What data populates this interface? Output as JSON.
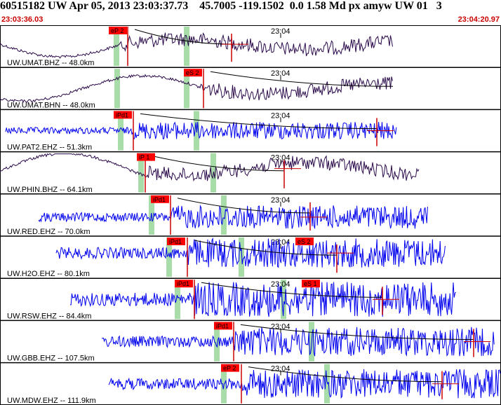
{
  "header": {
    "title": "60515182 UW Apr 05, 2013 23:03:37.73    45.7005 -119.1502  0.0 1.58 Md px amyw UW 01   3",
    "start_time": "23:03:36.03",
    "end_time": "23:04:20.97"
  },
  "tick_label": "23:04",
  "colors": {
    "broadband": "#2a0a4a",
    "short_period": "#0000ee",
    "pick_box": "#ff0000",
    "marker": "#a8dca8",
    "coda": "#000000",
    "border": "#000000"
  },
  "traces": [
    {
      "label": "UW.UMAT.BHZ -- 48.0km",
      "pick": "eP 2",
      "type": "broad",
      "picks_count": 1
    },
    {
      "label": "UW.UMAT.BHN -- 48.0km",
      "pick": "eS 2",
      "type": "broad",
      "picks_count": 1
    },
    {
      "label": "UW.PAT2.EHZ -- 51.3km",
      "pick": "iPd1",
      "type": "short",
      "picks_count": 1
    },
    {
      "label": "UW.PHIN.BHZ -- 64.1km",
      "pick": "iP 1",
      "type": "broad",
      "picks_count": 1
    },
    {
      "label": "UW.RED.EHZ -- 70.0km",
      "pick": "iPd1",
      "type": "short",
      "picks_count": 1
    },
    {
      "label": "UW.H2O.EHZ -- 80.1km",
      "pick": "iPd1",
      "pick2": "eS 2",
      "type": "short",
      "picks_count": 2
    },
    {
      "label": "UW.RSW.EHZ -- 84.4km",
      "pick": "iPd1",
      "pick2": "eS 1",
      "type": "short",
      "picks_count": 2
    },
    {
      "label": "UW.GBB.EHZ -- 107.5km",
      "pick": "iPd1",
      "type": "short",
      "picks_count": 1
    },
    {
      "label": "UW.MDW.EHZ -- 111.9km",
      "pick": "eP 2",
      "type": "short",
      "picks_count": 1
    }
  ]
}
